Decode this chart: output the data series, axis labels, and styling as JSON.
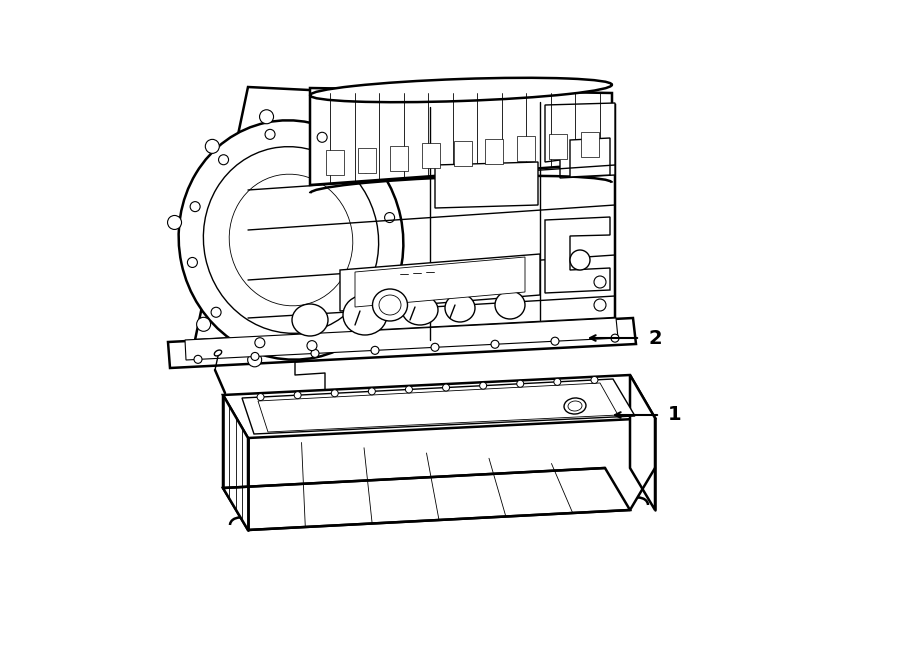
{
  "background_color": "#ffffff",
  "line_color": "#000000",
  "lw_main": 1.8,
  "lw_detail": 1.0,
  "lw_thin": 0.6,
  "label1": "1",
  "label2": "2",
  "figsize": [
    9.0,
    6.61
  ],
  "dpi": 100
}
